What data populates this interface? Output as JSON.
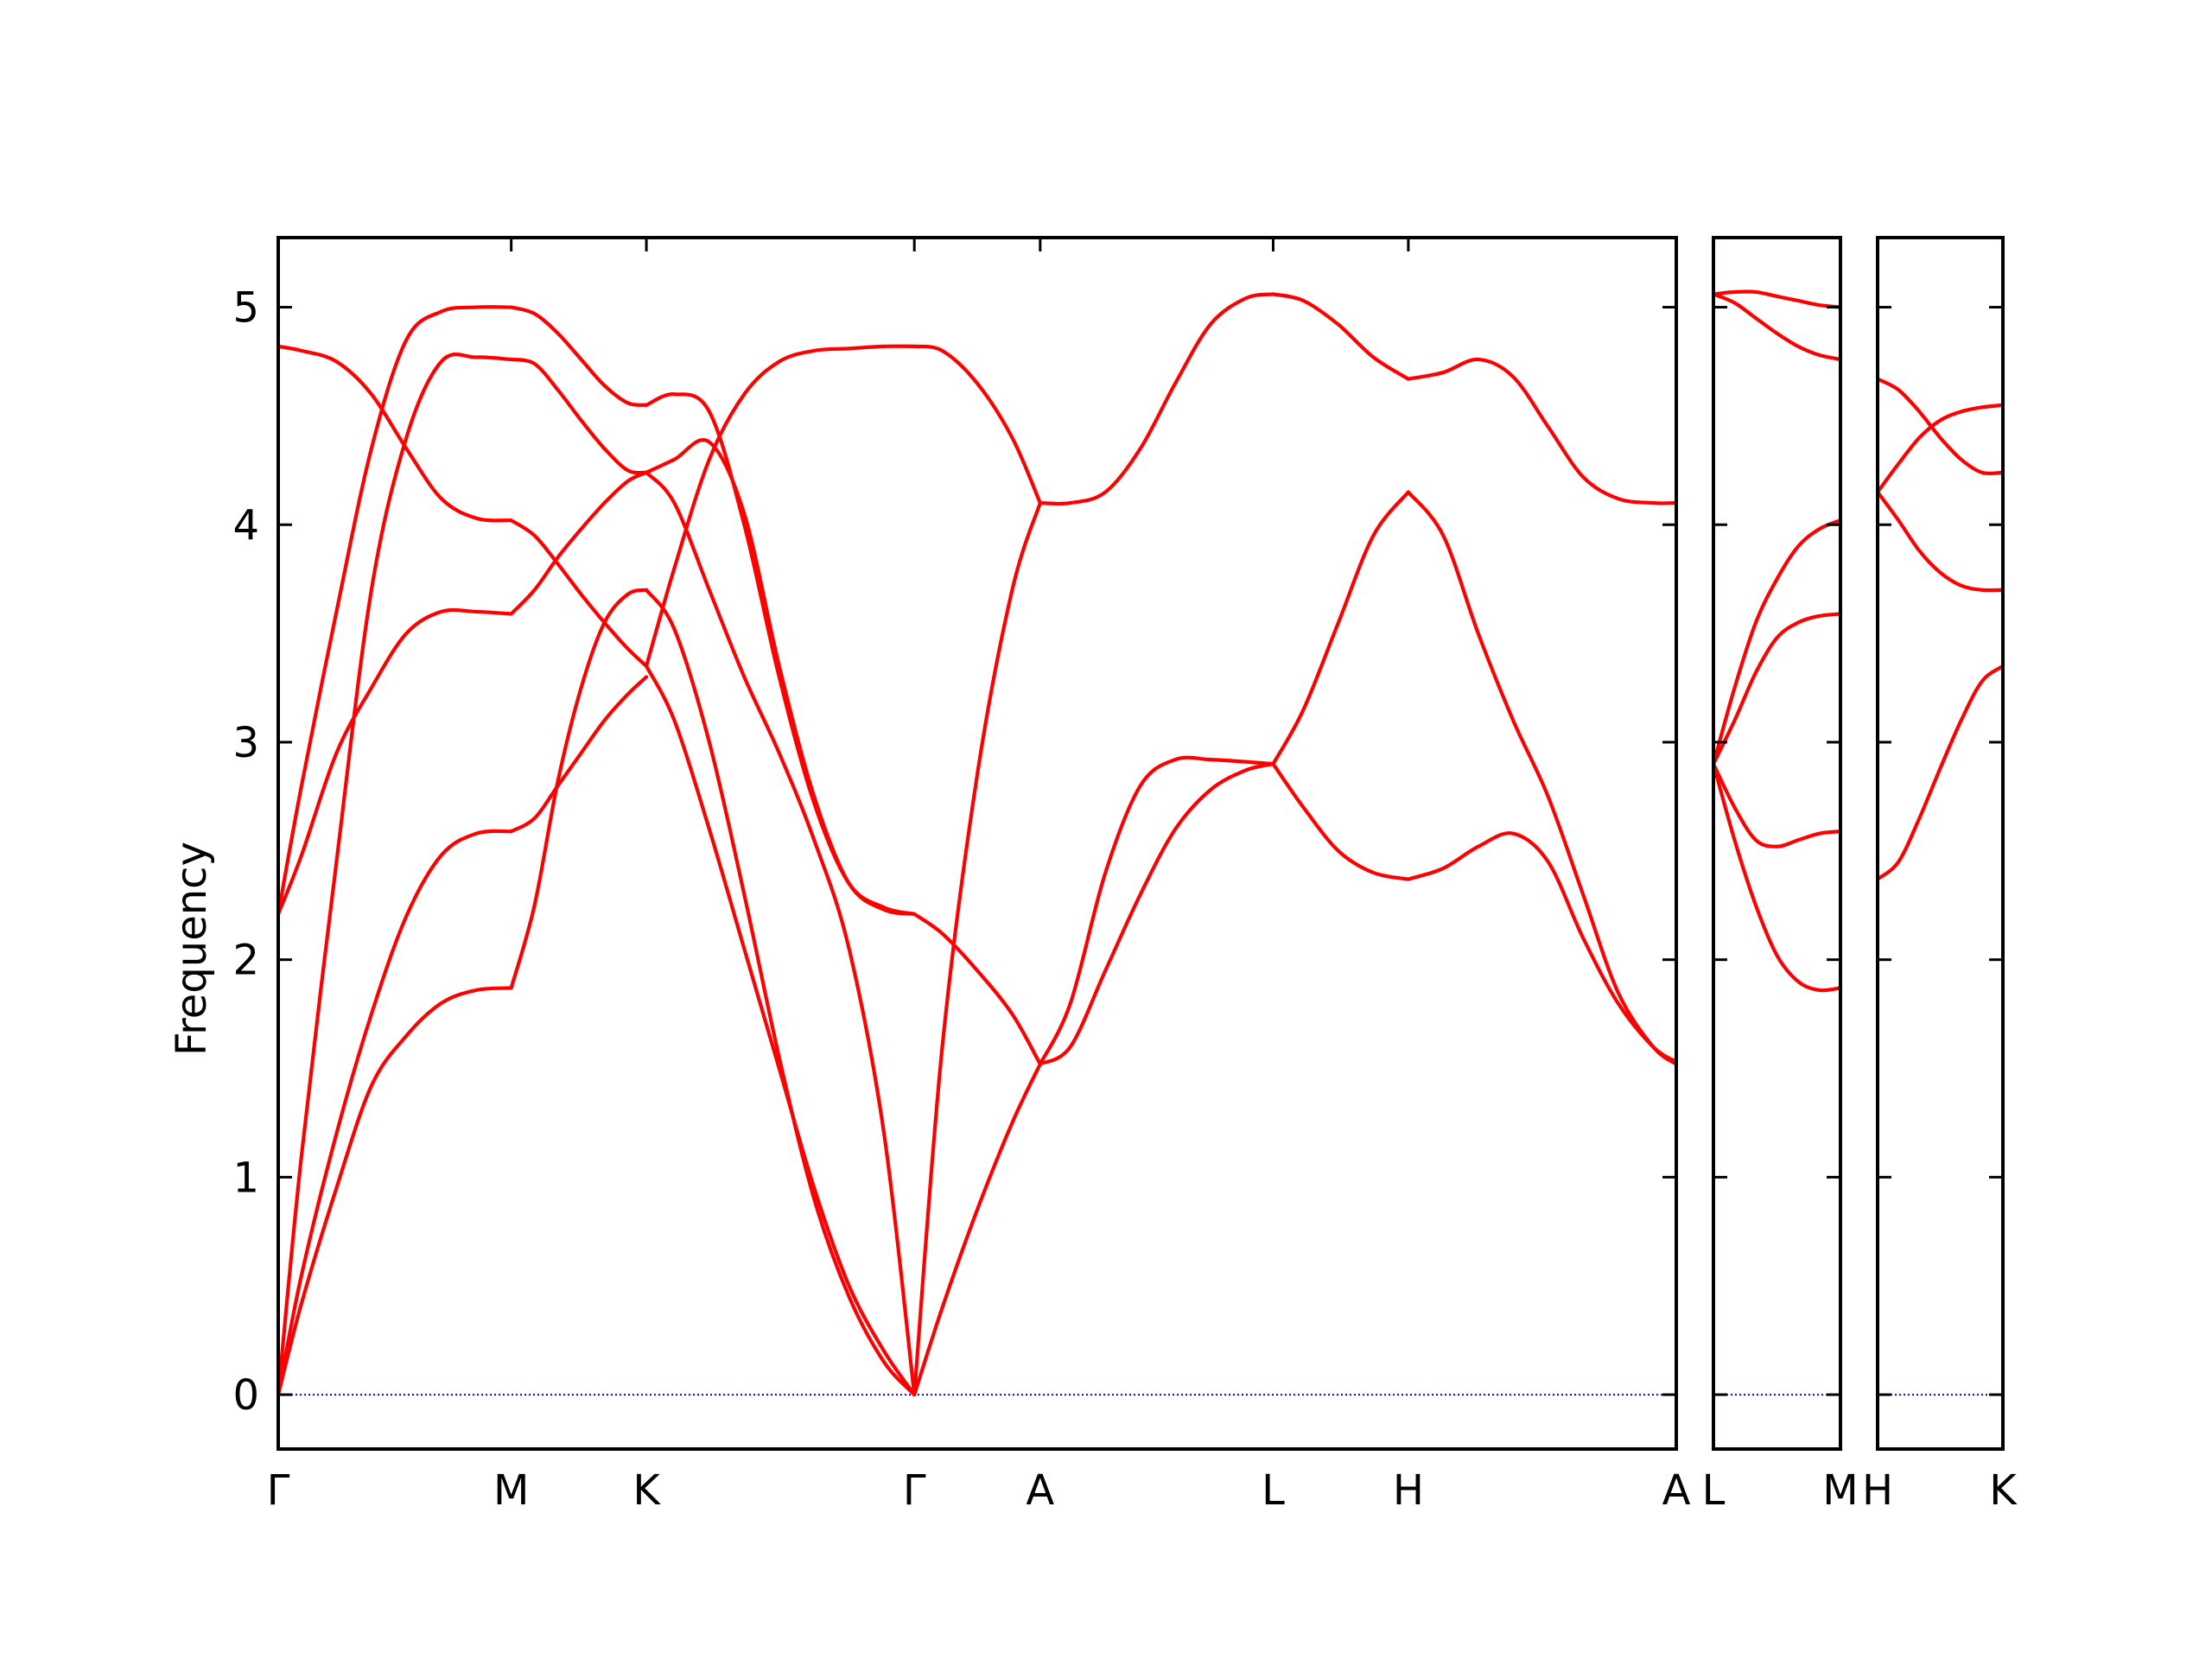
{
  "chart_data": {
    "type": "line",
    "title": "",
    "ylabel": "Frequency",
    "ylim": [
      -0.25,
      5.32
    ],
    "yticks": [
      0,
      1,
      2,
      3,
      4,
      5
    ],
    "grid": false,
    "zero_line_color": "#0000ff",
    "band_color": "#ff0000",
    "panels": [
      {
        "x_range": [
          0,
          6.0
        ],
        "kpoints": [
          {
            "label": "Γ",
            "x": 0
          },
          {
            "label": "M",
            "x": 1.0
          },
          {
            "label": "K",
            "x": 1.58
          },
          {
            "label": "Γ",
            "x": 2.73
          },
          {
            "label": "A",
            "x": 3.27
          },
          {
            "label": "L",
            "x": 4.27
          },
          {
            "label": "H",
            "x": 4.85
          },
          {
            "label": "A",
            "x": 6.0
          }
        ],
        "segments": [
          {
            "x": [
              0,
              0.1,
              0.25,
              0.4,
              0.55,
              0.7,
              0.85,
              1.0
            ],
            "bands": [
              [
                0.0,
                0.42,
                0.95,
                1.42,
                1.65,
                1.8,
                1.86,
                1.87
              ],
              [
                0.0,
                0.55,
                1.2,
                1.75,
                2.2,
                2.48,
                2.58,
                2.59
              ],
              [
                0.0,
                1.1,
                2.45,
                3.7,
                4.4,
                4.75,
                4.77,
                4.76
              ],
              [
                2.21,
                2.48,
                2.95,
                3.25,
                3.5,
                3.6,
                3.6,
                3.59
              ],
              [
                2.21,
                2.8,
                3.6,
                4.35,
                4.85,
                4.98,
                5.0,
                5.0
              ],
              [
                4.82,
                4.8,
                4.75,
                4.6,
                4.35,
                4.12,
                4.03,
                4.02
              ]
            ]
          },
          {
            "x": [
              1.0,
              1.1,
              1.2,
              1.3,
              1.4,
              1.5,
              1.58
            ],
            "bands": [
              [
                1.87,
                2.25,
                2.82,
                3.25,
                3.55,
                3.68,
                3.7
              ],
              [
                2.59,
                2.65,
                2.8,
                2.95,
                3.1,
                3.22,
                3.3
              ],
              [
                3.59,
                3.7,
                3.85,
                3.98,
                4.1,
                4.2,
                4.24
              ],
              [
                4.02,
                3.95,
                3.82,
                3.68,
                3.55,
                3.43,
                3.35
              ],
              [
                4.76,
                4.74,
                4.62,
                4.48,
                4.35,
                4.25,
                4.24
              ],
              [
                5.0,
                4.97,
                4.88,
                4.76,
                4.64,
                4.56,
                4.55
              ]
            ]
          },
          {
            "x": [
              1.58,
              1.7,
              1.85,
              2.0,
              2.15,
              2.3,
              2.45,
              2.6,
              2.73
            ],
            "bands": [
              [
                3.7,
                3.52,
                3.0,
                2.3,
                1.55,
                0.9,
                0.45,
                0.15,
                0.0
              ],
              [
                3.35,
                3.1,
                2.6,
                2.05,
                1.5,
                0.95,
                0.5,
                0.2,
                0.0
              ],
              [
                4.24,
                4.1,
                3.7,
                3.3,
                2.95,
                2.55,
                2.05,
                1.2,
                0.0
              ],
              [
                4.24,
                4.3,
                4.38,
                4.05,
                3.35,
                2.75,
                2.35,
                2.23,
                2.21
              ],
              [
                4.55,
                4.6,
                4.52,
                4.0,
                3.3,
                2.72,
                2.35,
                2.24,
                2.21
              ],
              [
                3.35,
                3.8,
                4.3,
                4.6,
                4.75,
                4.8,
                4.81,
                4.82,
                4.82
              ]
            ]
          },
          {
            "x": [
              2.73,
              2.85,
              3.0,
              3.15,
              3.27
            ],
            "bands": [
              [
                0.0,
                0.4,
                0.85,
                1.25,
                1.52
              ],
              [
                2.21,
                2.12,
                1.95,
                1.75,
                1.52
              ],
              [
                0.0,
                1.6,
                2.85,
                3.7,
                4.1
              ],
              [
                4.82,
                4.8,
                4.65,
                4.4,
                4.1
              ]
            ]
          },
          {
            "x": [
              3.27,
              3.4,
              3.55,
              3.7,
              3.85,
              4.0,
              4.15,
              4.27
            ],
            "bands": [
              [
                1.52,
                1.6,
                1.95,
                2.3,
                2.6,
                2.78,
                2.87,
                2.9
              ],
              [
                1.52,
                1.8,
                2.4,
                2.8,
                2.92,
                2.92,
                2.91,
                2.9
              ],
              [
                4.1,
                4.1,
                4.15,
                4.35,
                4.65,
                4.92,
                5.04,
                5.06
              ]
            ]
          },
          {
            "x": [
              4.27,
              4.4,
              4.55,
              4.7,
              4.85
            ],
            "bands": [
              [
                2.9,
                3.15,
                3.55,
                3.95,
                4.15
              ],
              [
                2.9,
                2.7,
                2.5,
                2.4,
                2.37
              ],
              [
                5.06,
                5.03,
                4.92,
                4.77,
                4.67
              ]
            ]
          },
          {
            "x": [
              4.85,
              5.0,
              5.15,
              5.3,
              5.45,
              5.6,
              5.75,
              5.9,
              6.0
            ],
            "bands": [
              [
                4.15,
                3.95,
                3.5,
                3.1,
                2.75,
                2.3,
                1.85,
                1.6,
                1.52
              ],
              [
                2.37,
                2.42,
                2.52,
                2.58,
                2.45,
                2.1,
                1.8,
                1.6,
                1.53
              ],
              [
                4.67,
                4.7,
                4.76,
                4.68,
                4.45,
                4.22,
                4.12,
                4.1,
                4.1
              ]
            ]
          }
        ]
      },
      {
        "x_range": [
          0,
          0.54
        ],
        "kpoints": [
          {
            "label": "L",
            "x": 0
          },
          {
            "label": "M",
            "x": 0.54
          }
        ],
        "segments": [
          {
            "x": [
              0,
              0.09,
              0.18,
              0.27,
              0.36,
              0.45,
              0.54
            ],
            "bands": [
              [
                2.9,
                2.55,
                2.25,
                2.02,
                1.9,
                1.86,
                1.87
              ],
              [
                2.9,
                2.7,
                2.55,
                2.52,
                2.55,
                2.58,
                2.59
              ],
              [
                2.9,
                3.1,
                3.32,
                3.48,
                3.55,
                3.58,
                3.59
              ],
              [
                2.9,
                3.25,
                3.55,
                3.75,
                3.9,
                3.98,
                4.02
              ],
              [
                5.06,
                5.02,
                4.95,
                4.88,
                4.82,
                4.78,
                4.76
              ],
              [
                5.06,
                5.07,
                5.07,
                5.05,
                5.03,
                5.01,
                5.0
              ]
            ]
          }
        ]
      },
      {
        "x_range": [
          0,
          0.54
        ],
        "kpoints": [
          {
            "label": "H",
            "x": 0
          },
          {
            "label": "K",
            "x": 0.54
          }
        ],
        "segments": [
          {
            "x": [
              0,
              0.09,
              0.18,
              0.27,
              0.36,
              0.45,
              0.54
            ],
            "bands": [
              [
                2.37,
                2.45,
                2.65,
                2.88,
                3.1,
                3.28,
                3.35
              ],
              [
                4.15,
                4.02,
                3.88,
                3.78,
                3.72,
                3.7,
                3.7
              ],
              [
                4.15,
                4.28,
                4.4,
                4.48,
                4.52,
                4.54,
                4.55
              ],
              [
                4.67,
                4.62,
                4.52,
                4.4,
                4.3,
                4.24,
                4.24
              ]
            ]
          }
        ]
      }
    ]
  }
}
